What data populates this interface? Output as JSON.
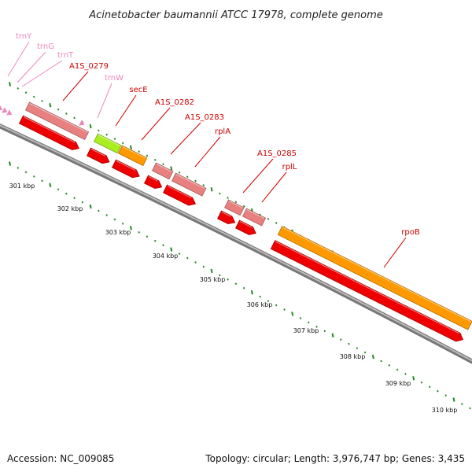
{
  "title": "Acinetobacter baumannii ATCC 17978, complete genome",
  "footer": {
    "accession": "Accession: NC_009085",
    "summary": "Topology: circular; Length: 3,976,747 bp; Genes: 3,435"
  },
  "colors": {
    "gene_red": "#ee0000",
    "gene_light_red": "#e88080",
    "gene_orange": "#ff9900",
    "gene_green": "#aaee22",
    "trna_pink": "#ee88bb",
    "tick_green": "#228822",
    "backbone_grey": "#888888",
    "label_red": "#cc0000",
    "label_pink": "#ee88bb"
  },
  "kbp_labels": [
    "301 kbp",
    "302 kbp",
    "303 kbp",
    "304 kbp",
    "305 kbp",
    "306 kbp",
    "307 kbp",
    "308 kbp",
    "309 kbp",
    "310 kbp"
  ],
  "gene_labels": [
    {
      "text": "trnY",
      "type": "trna"
    },
    {
      "text": "trnG",
      "type": "trna"
    },
    {
      "text": "trnT",
      "type": "trna"
    },
    {
      "text": "A1S_0279",
      "type": "gene"
    },
    {
      "text": "trnW",
      "type": "trna"
    },
    {
      "text": "secE",
      "type": "gene"
    },
    {
      "text": "A1S_0282",
      "type": "gene"
    },
    {
      "text": "A1S_0283",
      "type": "gene"
    },
    {
      "text": "rplA",
      "type": "gene"
    },
    {
      "text": "A1S_0285",
      "type": "gene"
    },
    {
      "text": "rplL",
      "type": "gene"
    },
    {
      "text": "rpoB",
      "type": "gene"
    }
  ]
}
